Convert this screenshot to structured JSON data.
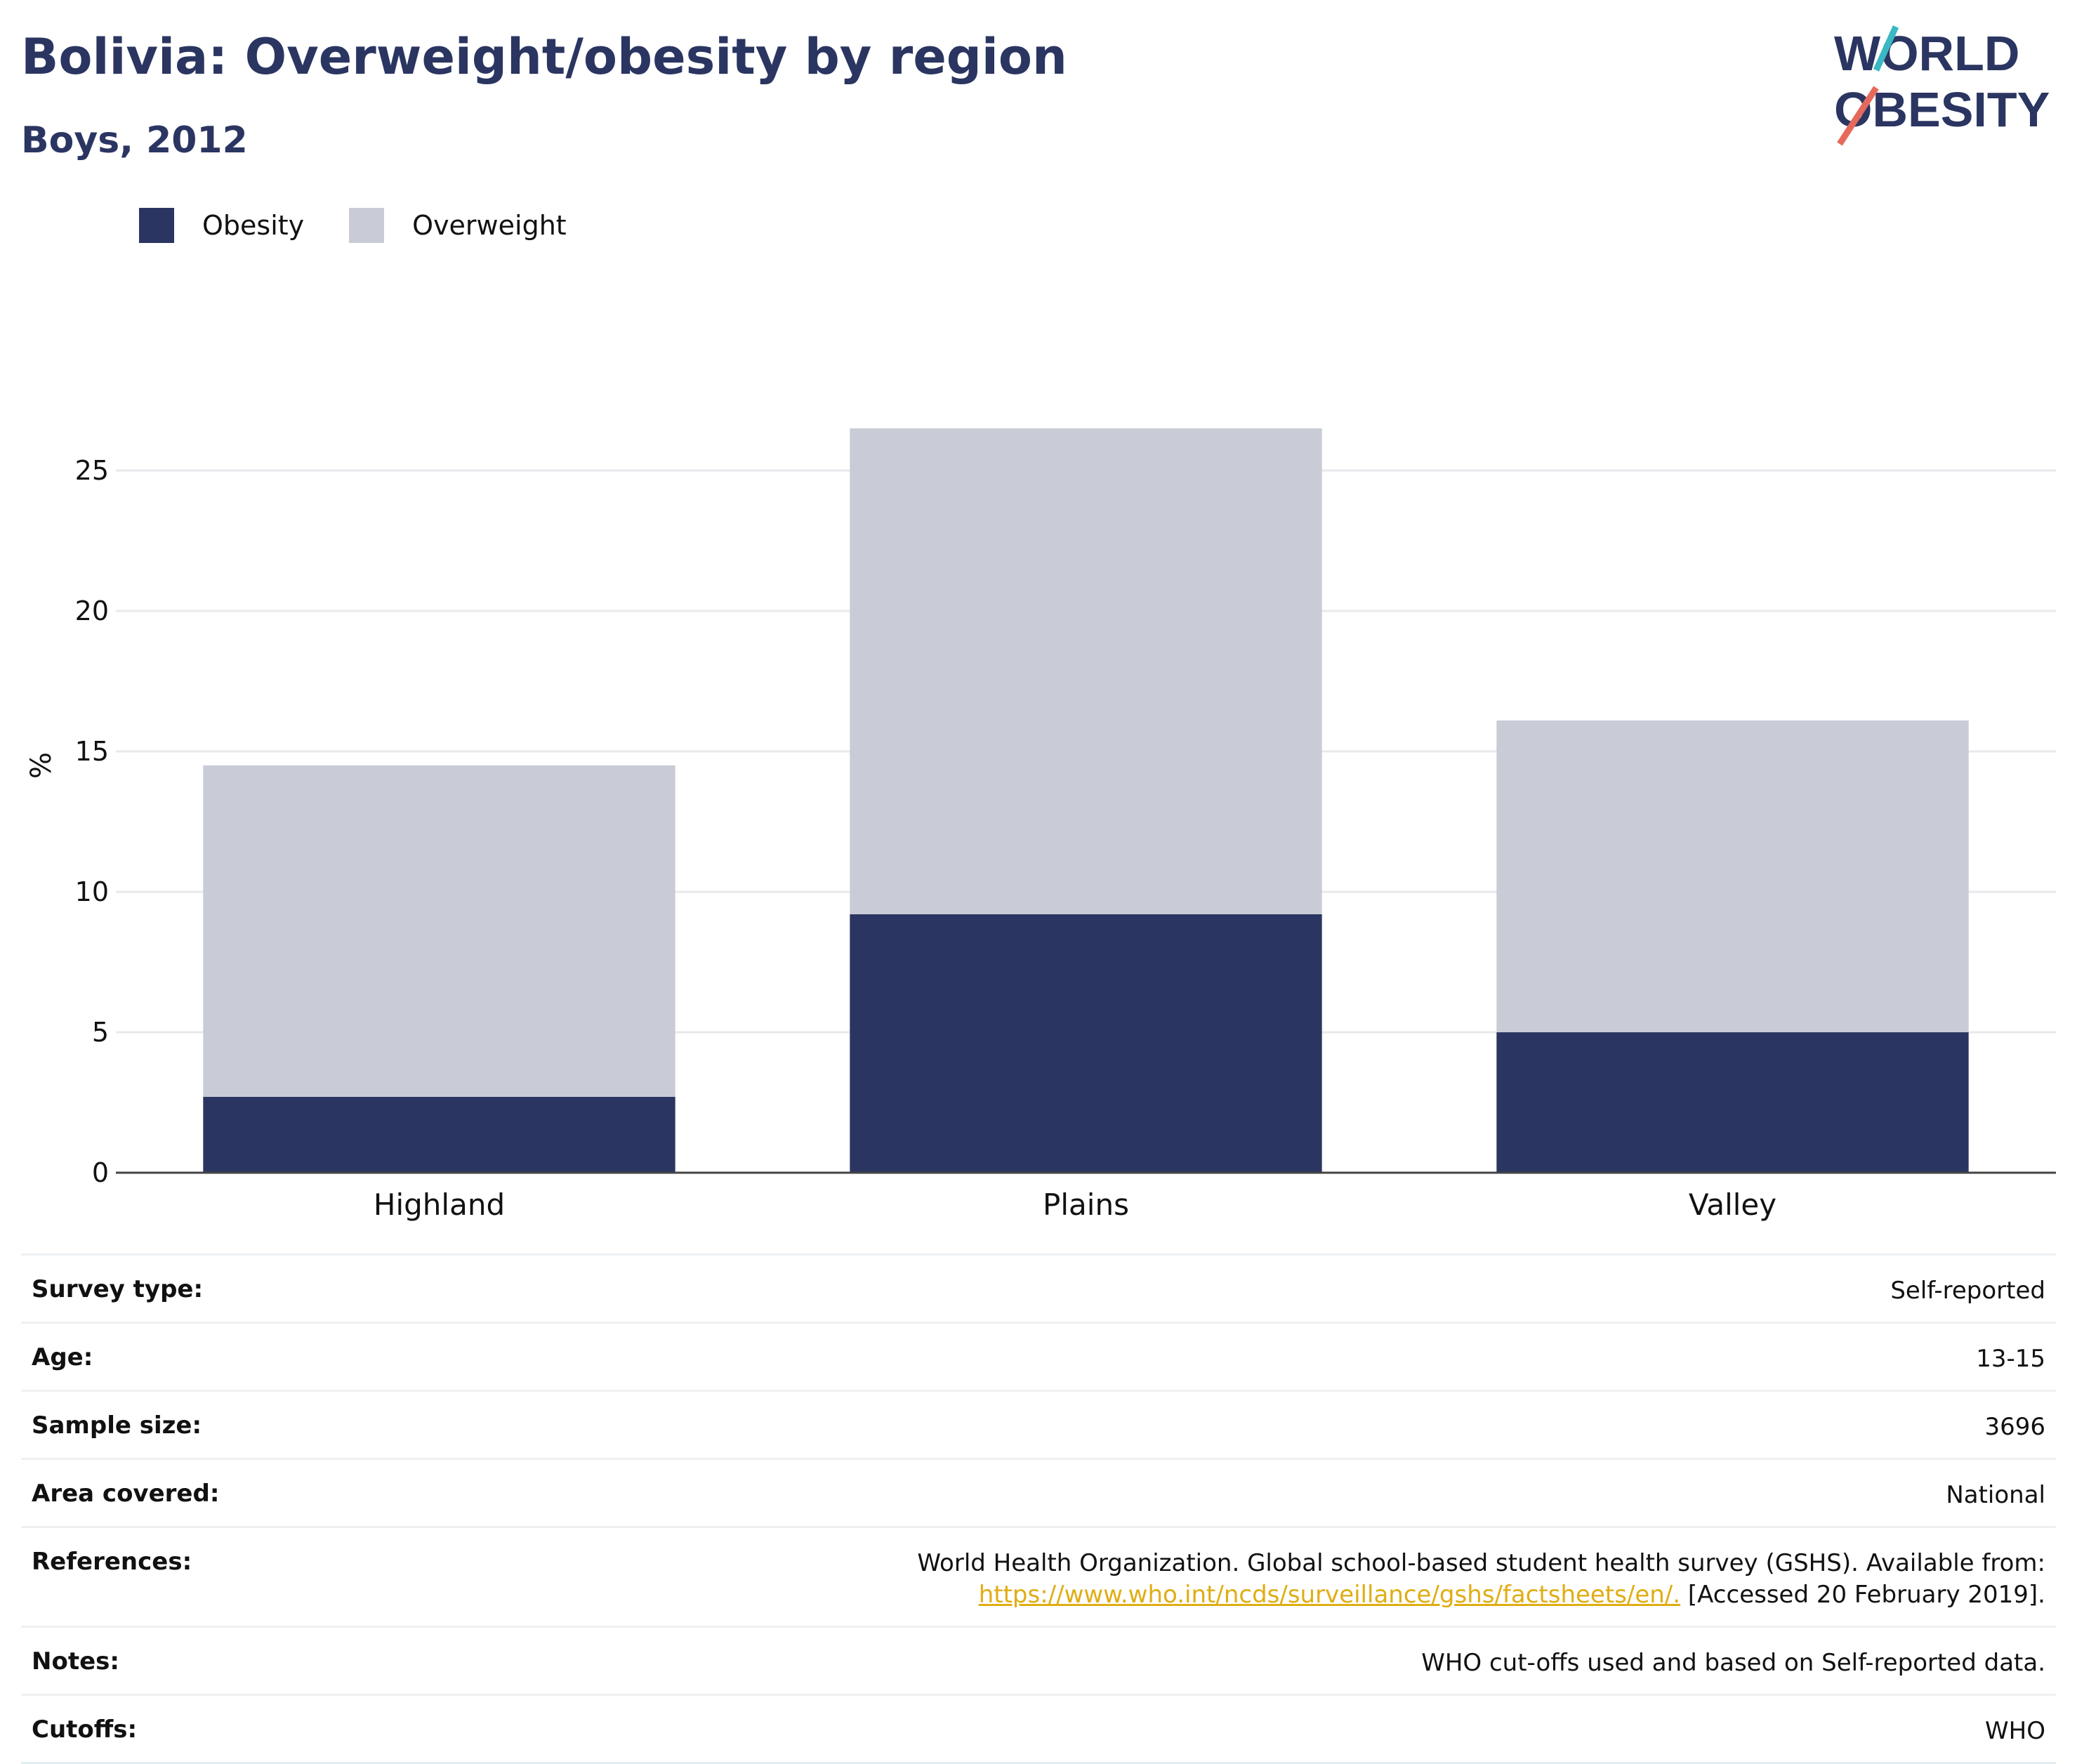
{
  "header": {
    "title": "Bolivia: Overweight/obesity by region",
    "subtitle": "Boys, 2012",
    "logo_line1": "WORLD",
    "logo_line2": "OBESITY"
  },
  "legend": {
    "items": [
      {
        "label": "Obesity",
        "color": "#2b3561"
      },
      {
        "label": "Overweight",
        "color": "#c9cbd6"
      }
    ]
  },
  "chart_data": {
    "type": "bar",
    "stacked": true,
    "categories": [
      "Highland",
      "Plains",
      "Valley"
    ],
    "series": [
      {
        "name": "Obesity",
        "color": "#2b3561",
        "values": [
          2.7,
          9.2,
          5.0
        ]
      },
      {
        "name": "Overweight",
        "color": "#c9cbd6",
        "values": [
          11.8,
          17.3,
          11.1
        ]
      }
    ],
    "ylabel": "%",
    "xlabel": "",
    "ylim": [
      0,
      29
    ],
    "yticks": [
      0,
      5,
      10,
      15,
      20,
      25
    ],
    "grid": true,
    "legend_position": "top-left"
  },
  "meta": {
    "rows": [
      {
        "key": "Survey type:",
        "value": "Self-reported"
      },
      {
        "key": "Age:",
        "value": "13-15"
      },
      {
        "key": "Sample size:",
        "value": "3696"
      },
      {
        "key": "Area covered:",
        "value": "National"
      },
      {
        "key": "Notes:",
        "value": "WHO cut-offs used and based on Self-reported data."
      },
      {
        "key": "Cutoffs:",
        "value": "WHO"
      }
    ],
    "references": {
      "key": "References:",
      "text_line1": "World Health Organization. Global school-based student health survey (GSHS). Available from:",
      "link": "https://www.who.int/ncds/surveillance/gshs/factsheets/en/.",
      "text_after_link": " [Accessed 20 February 2019]."
    }
  },
  "colors": {
    "brand": "#2b3561",
    "overweight": "#c9cbd6",
    "link": "#e0ad13",
    "logo_teal": "#3ab8c4",
    "logo_coral": "#e56a5b"
  }
}
